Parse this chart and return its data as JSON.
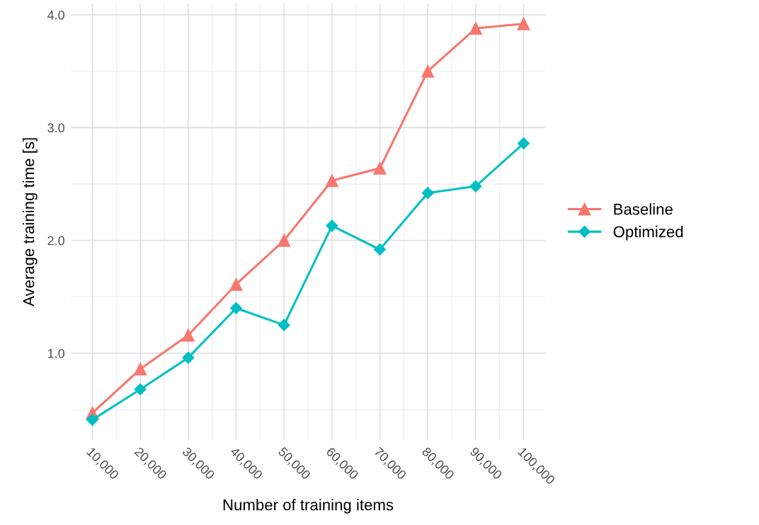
{
  "chart_data": {
    "type": "line",
    "xlabel": "Number of training items",
    "ylabel": "Average training time [s]",
    "x": [
      10000,
      20000,
      30000,
      40000,
      50000,
      60000,
      70000,
      80000,
      90000,
      100000
    ],
    "series": [
      {
        "name": "Baseline",
        "color": "#f8766d",
        "marker": "triangle",
        "values": [
          0.47,
          0.86,
          1.16,
          1.61,
          2.0,
          2.53,
          2.64,
          3.5,
          3.88,
          3.92
        ]
      },
      {
        "name": "Optimized",
        "color": "#00bfc4",
        "marker": "diamond",
        "values": [
          0.41,
          0.68,
          0.96,
          1.4,
          1.25,
          2.13,
          1.92,
          2.42,
          2.48,
          2.86
        ]
      }
    ],
    "xlim": [
      5500,
      104500
    ],
    "ylim": [
      0.23,
      4.1
    ],
    "xticks": [
      {
        "value": 10000,
        "label": "10,000"
      },
      {
        "value": 20000,
        "label": "20,000"
      },
      {
        "value": 30000,
        "label": "30,000"
      },
      {
        "value": 40000,
        "label": "40,000"
      },
      {
        "value": 50000,
        "label": "50,000"
      },
      {
        "value": 60000,
        "label": "60,000"
      },
      {
        "value": 70000,
        "label": "70,000"
      },
      {
        "value": 80000,
        "label": "80,000"
      },
      {
        "value": 90000,
        "label": "90,000"
      },
      {
        "value": 100000,
        "label": "100,000"
      }
    ],
    "yticks": [
      {
        "value": 1,
        "label": "1.0"
      },
      {
        "value": 2,
        "label": "2.0"
      },
      {
        "value": 3,
        "label": "3.0"
      },
      {
        "value": 4,
        "label": "4.0"
      }
    ],
    "grid": true,
    "legend": "right",
    "line_style": "solid"
  }
}
